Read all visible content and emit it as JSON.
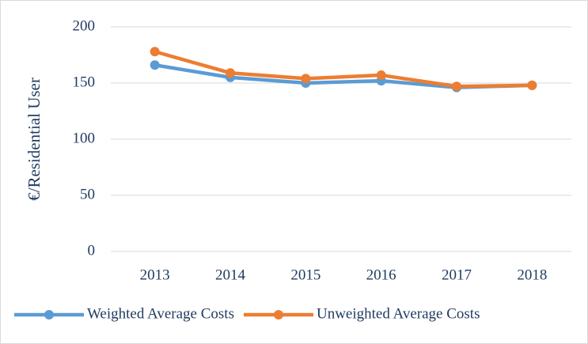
{
  "chart_data": {
    "type": "line",
    "y_label": "€/Residential User",
    "categories": [
      "2013",
      "2014",
      "2015",
      "2016",
      "2017",
      "2018"
    ],
    "series": [
      {
        "name": "Weighted Average Costs",
        "color": "#5b9bd5",
        "values": [
          166,
          155,
          150,
          152,
          146,
          148
        ]
      },
      {
        "name": "Unweighted Average Costs",
        "color": "#ed7d31",
        "values": [
          178,
          159,
          154,
          157,
          147,
          148
        ]
      }
    ],
    "ylim": [
      0,
      200
    ],
    "yticks": [
      0,
      50,
      100,
      150,
      200
    ],
    "grid": true,
    "legend": "bottom"
  }
}
